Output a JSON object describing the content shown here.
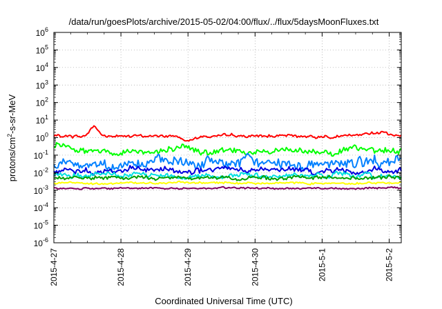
{
  "chart_data": {
    "type": "line",
    "title": "/data/run/goesPlots/archive/2015-05-02/04:00/flux/../flux/5daysMoonFluxes.txt",
    "xlabel": "Coordinated Universal Time (UTC)",
    "ylabel": {
      "base": "protons/cm",
      "sup": "2",
      "rest": "-s-sr-MeV"
    },
    "yscale": "log",
    "ylim_exp": [
      -6,
      6
    ],
    "y_ticks": [
      {
        "base": "10",
        "exp": "-6",
        "e": -6
      },
      {
        "base": "10",
        "exp": "-5",
        "e": -5
      },
      {
        "base": "10",
        "exp": "-4",
        "e": -4
      },
      {
        "base": "10",
        "exp": "-3",
        "e": -3
      },
      {
        "base": "10",
        "exp": "-2",
        "e": -2
      },
      {
        "base": "10",
        "exp": "-1",
        "e": -1
      },
      {
        "base": "10",
        "exp": "0",
        "e": 0
      },
      {
        "base": "10",
        "exp": "1",
        "e": 1
      },
      {
        "base": "10",
        "exp": "2",
        "e": 2
      },
      {
        "base": "10",
        "exp": "3",
        "e": 3
      },
      {
        "base": "10",
        "exp": "4",
        "e": 4
      },
      {
        "base": "10",
        "exp": "5",
        "e": 5
      },
      {
        "base": "10",
        "exp": "6",
        "e": 6
      }
    ],
    "xlim_days": [
      0,
      5.18
    ],
    "x_ticks": [
      {
        "label": "2015-4-27",
        "day": 0
      },
      {
        "label": "2015-4-28",
        "day": 1
      },
      {
        "label": "2015-4-29",
        "day": 2
      },
      {
        "label": "2015-4-30",
        "day": 3
      },
      {
        "label": "2015-5-1",
        "day": 4
      },
      {
        "label": "2015-5-2",
        "day": 5
      }
    ],
    "grid": true,
    "series": [
      {
        "color": "#ff0000",
        "level": 1.2,
        "noise": 0.12,
        "bumps": [
          {
            "at": 0.6,
            "w": 0.08,
            "amp": 0.6
          },
          {
            "at": 4.85,
            "w": 0.2,
            "amp": 0.25
          },
          {
            "at": 2.0,
            "w": 0.1,
            "amp": -0.25
          }
        ]
      },
      {
        "color": "#00ff00",
        "level": 0.18,
        "noise": 0.28,
        "bumps": [
          {
            "at": 0.1,
            "w": 0.3,
            "amp": 0.35
          }
        ]
      },
      {
        "color": "#0080ff",
        "level": 0.035,
        "noise": 0.45,
        "bumps": []
      },
      {
        "color": "#0000e0",
        "level": 0.013,
        "noise": 0.25,
        "bumps": []
      },
      {
        "color": "#00e0e0",
        "level": 0.007,
        "noise": 0.22,
        "bumps": []
      },
      {
        "color": "#00a000",
        "level": 0.005,
        "noise": 0.15,
        "bumps": []
      },
      {
        "color": "#ffff00",
        "level": 0.0026,
        "noise": 0.08,
        "bumps": []
      },
      {
        "color": "#800060",
        "level": 0.0013,
        "noise": 0.07,
        "bumps": []
      }
    ]
  }
}
